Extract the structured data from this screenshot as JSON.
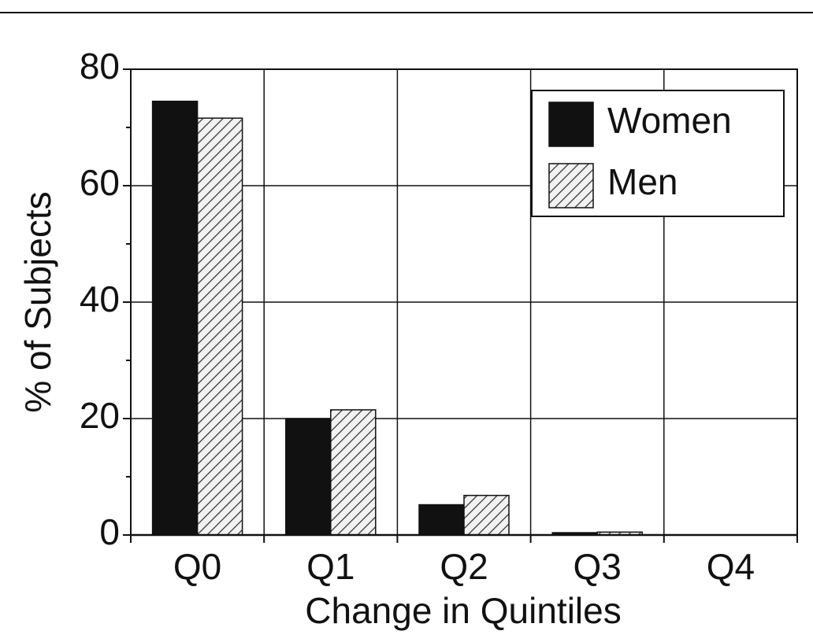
{
  "chart_data": {
    "type": "grouped_bar",
    "x_label": "Change in Quintiles",
    "y_label": "% of Subjects",
    "categories": [
      "Q0",
      "Q1",
      "Q2",
      "Q3",
      "Q4"
    ],
    "series": [
      {
        "name": "Women",
        "color": "#111111",
        "hatch": false,
        "values": [
          74.5,
          20,
          5.2,
          0.4,
          0
        ]
      },
      {
        "name": "Men",
        "color": "#333333",
        "hatch": true,
        "values": [
          71.6,
          21.5,
          6.8,
          0.5,
          0
        ]
      }
    ],
    "ylim": [
      0,
      80
    ],
    "yticks": [
      0,
      20,
      40,
      60,
      80
    ],
    "minor_yticks": [
      10,
      30,
      50,
      70
    ],
    "grid": true,
    "legend": "upper right"
  }
}
